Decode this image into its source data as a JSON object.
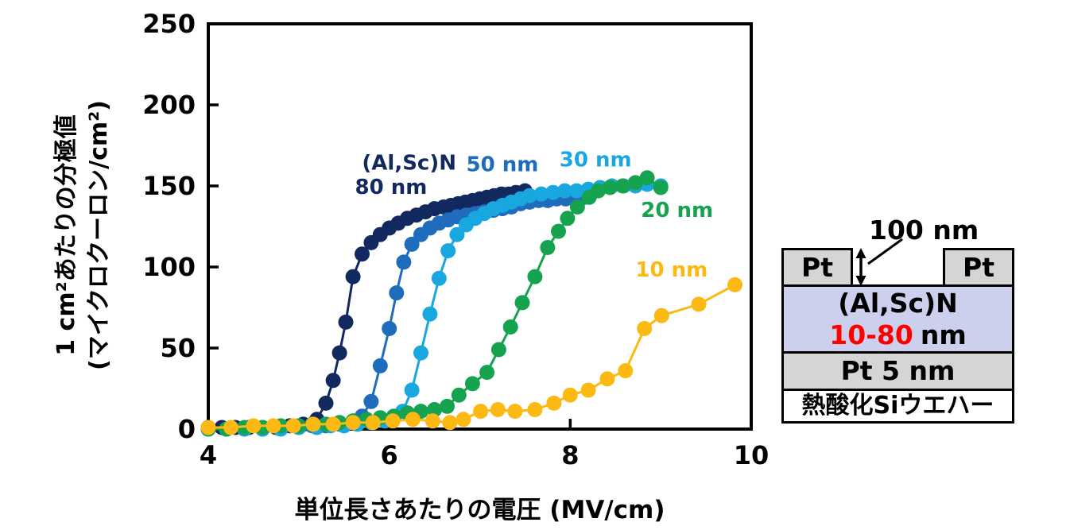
{
  "chart_data": {
    "type": "line",
    "title": "",
    "xlabel": "単位長さあたりの電圧 (MV/cm)",
    "ylabel_line1": "1 cm²あたりの分極値",
    "ylabel_line2": "(マイクロクーロン/cm²)",
    "xlim": [
      4,
      10
    ],
    "ylim": [
      0,
      250
    ],
    "xticks": [
      4,
      6,
      8,
      10
    ],
    "yticks": [
      0,
      50,
      100,
      150,
      200,
      250
    ],
    "grid": false,
    "legend_position": "inline-annotations",
    "series": [
      {
        "id": "80nm",
        "name": "(Al,Sc)N 80 nm",
        "color": "#12295f",
        "labels": [
          {
            "text": "(Al,Sc)N",
            "x": 6.22,
            "y": 160
          },
          {
            "text": "80 nm",
            "x": 6.02,
            "y": 145
          }
        ],
        "points": [
          [
            4.0,
            1
          ],
          [
            4.15,
            1
          ],
          [
            4.3,
            1
          ],
          [
            4.45,
            1
          ],
          [
            4.6,
            1
          ],
          [
            4.75,
            1
          ],
          [
            4.9,
            2
          ],
          [
            5.05,
            3
          ],
          [
            5.2,
            6
          ],
          [
            5.3,
            16
          ],
          [
            5.38,
            30
          ],
          [
            5.45,
            47
          ],
          [
            5.52,
            66
          ],
          [
            5.6,
            94
          ],
          [
            5.7,
            108
          ],
          [
            5.8,
            115
          ],
          [
            5.9,
            120
          ],
          [
            6.0,
            124
          ],
          [
            6.1,
            127
          ],
          [
            6.2,
            130
          ],
          [
            6.3,
            132
          ],
          [
            6.4,
            134
          ],
          [
            6.5,
            136
          ],
          [
            6.6,
            137
          ],
          [
            6.68,
            138
          ],
          [
            6.76,
            139
          ],
          [
            6.84,
            140
          ],
          [
            6.92,
            141
          ],
          [
            7.0,
            142
          ],
          [
            7.08,
            143
          ],
          [
            7.16,
            144
          ],
          [
            7.24,
            145
          ],
          [
            7.32,
            145
          ],
          [
            7.4,
            146
          ],
          [
            7.5,
            147
          ]
        ]
      },
      {
        "id": "50nm",
        "name": "50 nm",
        "color": "#1e6cbb",
        "labels": [
          {
            "text": "50 nm",
            "x": 7.25,
            "y": 159
          }
        ],
        "points": [
          [
            4.0,
            0
          ],
          [
            4.2,
            0
          ],
          [
            4.4,
            0
          ],
          [
            4.6,
            0
          ],
          [
            4.8,
            1
          ],
          [
            5.0,
            1
          ],
          [
            5.15,
            2
          ],
          [
            5.3,
            2
          ],
          [
            5.45,
            3
          ],
          [
            5.6,
            5
          ],
          [
            5.7,
            8
          ],
          [
            5.8,
            17
          ],
          [
            5.9,
            39
          ],
          [
            6.0,
            62
          ],
          [
            6.08,
            84
          ],
          [
            6.16,
            103
          ],
          [
            6.25,
            114
          ],
          [
            6.35,
            120
          ],
          [
            6.45,
            124
          ],
          [
            6.55,
            127
          ],
          [
            6.65,
            129
          ],
          [
            6.75,
            131
          ],
          [
            6.85,
            132
          ],
          [
            6.95,
            133
          ],
          [
            7.05,
            134
          ],
          [
            7.15,
            135
          ],
          [
            7.25,
            136
          ],
          [
            7.35,
            137
          ],
          [
            7.45,
            139
          ],
          [
            7.55,
            140
          ],
          [
            7.65,
            141
          ],
          [
            7.75,
            141
          ],
          [
            7.85,
            142
          ],
          [
            7.95,
            142
          ],
          [
            8.05,
            142
          ],
          [
            8.15,
            143
          ]
        ]
      },
      {
        "id": "30nm",
        "name": "30 nm",
        "color": "#19a7e0",
        "labels": [
          {
            "text": "30 nm",
            "x": 8.28,
            "y": 162
          }
        ],
        "points": [
          [
            4.0,
            0
          ],
          [
            4.2,
            0
          ],
          [
            4.4,
            0
          ],
          [
            4.6,
            0
          ],
          [
            4.8,
            0
          ],
          [
            5.0,
            1
          ],
          [
            5.2,
            1
          ],
          [
            5.35,
            2
          ],
          [
            5.5,
            2
          ],
          [
            5.65,
            3
          ],
          [
            5.8,
            4
          ],
          [
            5.95,
            5
          ],
          [
            6.05,
            7
          ],
          [
            6.15,
            11
          ],
          [
            6.25,
            24
          ],
          [
            6.35,
            47
          ],
          [
            6.45,
            71
          ],
          [
            6.55,
            93
          ],
          [
            6.65,
            110
          ],
          [
            6.75,
            120
          ],
          [
            6.85,
            126
          ],
          [
            6.95,
            130
          ],
          [
            7.05,
            133
          ],
          [
            7.15,
            136
          ],
          [
            7.25,
            138
          ],
          [
            7.35,
            140
          ],
          [
            7.45,
            142
          ],
          [
            7.55,
            144
          ],
          [
            7.68,
            145
          ],
          [
            7.81,
            146
          ],
          [
            7.94,
            147
          ],
          [
            8.07,
            147
          ],
          [
            8.2,
            148
          ],
          [
            8.33,
            149
          ],
          [
            8.46,
            150
          ],
          [
            8.59,
            150
          ],
          [
            8.72,
            150
          ],
          [
            8.85,
            151
          ],
          [
            9.0,
            150
          ]
        ]
      },
      {
        "id": "20nm",
        "name": "20 nm",
        "color": "#16a350",
        "labels": [
          {
            "text": "20 nm",
            "x": 9.18,
            "y": 131
          }
        ],
        "points": [
          [
            4.0,
            0
          ],
          [
            4.2,
            0
          ],
          [
            4.4,
            1
          ],
          [
            4.6,
            1
          ],
          [
            4.8,
            2
          ],
          [
            5.0,
            2
          ],
          [
            5.15,
            3
          ],
          [
            5.3,
            3
          ],
          [
            5.45,
            4
          ],
          [
            5.6,
            5
          ],
          [
            5.75,
            6
          ],
          [
            5.9,
            7
          ],
          [
            6.05,
            8
          ],
          [
            6.2,
            10
          ],
          [
            6.35,
            11
          ],
          [
            6.5,
            12
          ],
          [
            6.64,
            14
          ],
          [
            6.77,
            21
          ],
          [
            6.92,
            28
          ],
          [
            7.08,
            35
          ],
          [
            7.21,
            49
          ],
          [
            7.34,
            63
          ],
          [
            7.47,
            78
          ],
          [
            7.61,
            94
          ],
          [
            7.75,
            112
          ],
          [
            7.87,
            122
          ],
          [
            7.97,
            130
          ],
          [
            8.08,
            137
          ],
          [
            8.21,
            143
          ],
          [
            8.31,
            147
          ],
          [
            8.44,
            149
          ],
          [
            8.58,
            150
          ],
          [
            8.72,
            152
          ],
          [
            8.85,
            155
          ],
          [
            9.0,
            149
          ]
        ]
      },
      {
        "id": "10nm",
        "name": "10 nm",
        "color": "#fcb813",
        "labels": [
          {
            "text": "10 nm",
            "x": 9.12,
            "y": 94
          }
        ],
        "points": [
          [
            4.0,
            1
          ],
          [
            4.25,
            1
          ],
          [
            4.5,
            2
          ],
          [
            4.72,
            2
          ],
          [
            4.94,
            2
          ],
          [
            5.16,
            3
          ],
          [
            5.38,
            3
          ],
          [
            5.6,
            4
          ],
          [
            5.82,
            4
          ],
          [
            6.04,
            5
          ],
          [
            6.26,
            6
          ],
          [
            6.48,
            5
          ],
          [
            6.67,
            4
          ],
          [
            6.82,
            6
          ],
          [
            7.01,
            11
          ],
          [
            7.2,
            12
          ],
          [
            7.39,
            11
          ],
          [
            7.61,
            12
          ],
          [
            7.82,
            16
          ],
          [
            8.0,
            21
          ],
          [
            8.2,
            24
          ],
          [
            8.41,
            31
          ],
          [
            8.61,
            36
          ],
          [
            8.82,
            62
          ],
          [
            9.01,
            70
          ],
          [
            9.42,
            77
          ],
          [
            9.82,
            89
          ]
        ]
      }
    ]
  },
  "diagram": {
    "electrode_thickness_label": "100 nm",
    "top_electrode_label_left": "Pt",
    "top_electrode_label_right": "Pt",
    "film_label": "(Al,Sc)N",
    "film_thickness_red": "10-80",
    "film_thickness_unit": "nm",
    "bottom_electrode_label": "Pt 5 nm",
    "substrate_label": "熱酸化Siウエハー",
    "colors": {
      "electrode_fill": "#d5d5d5",
      "film_fill": "#ccd0ec",
      "substrate_fill": "#ffffff",
      "thickness_red": "#ff0000",
      "outline": "#000000"
    }
  }
}
